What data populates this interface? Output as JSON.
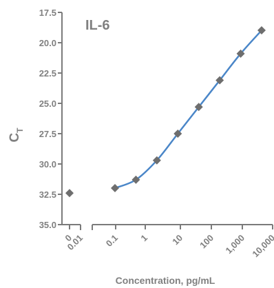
{
  "chart_data": {
    "type": "scatter",
    "title": "IL-6",
    "xlabel": "Concentration, pg/mL",
    "ylabel_main": "C",
    "ylabel_sub": "T",
    "x_scale": "log",
    "x_ticks": [
      {
        "label": "0",
        "value": 0
      },
      {
        "label": "0.01",
        "value": 0.01
      },
      {
        "label": "0.1",
        "value": 0.1
      },
      {
        "label": "1",
        "value": 1
      },
      {
        "label": "10",
        "value": 10
      },
      {
        "label": "100",
        "value": 100
      },
      {
        "label": "1,000",
        "value": 1000
      },
      {
        "label": "10,000",
        "value": 10000
      }
    ],
    "y_ticks": [
      {
        "label": "17.5",
        "value": 17.5
      },
      {
        "label": "20.0",
        "value": 20.0
      },
      {
        "label": "22.5",
        "value": 22.5
      },
      {
        "label": "25.0",
        "value": 25.0
      },
      {
        "label": "27.5",
        "value": 27.5
      },
      {
        "label": "30.0",
        "value": 30.0
      },
      {
        "label": "32.5",
        "value": 32.5
      },
      {
        "label": "35.0",
        "value": 35.0
      }
    ],
    "ylim": [
      35.0,
      17.5
    ],
    "y_inverted": true,
    "zero_point": {
      "x": 0,
      "y": 32.4
    },
    "points": [
      {
        "x": 0.064,
        "y": 31.99
      },
      {
        "x": 0.32,
        "y": 31.3
      },
      {
        "x": 1.6,
        "y": 29.7
      },
      {
        "x": 8,
        "y": 27.5
      },
      {
        "x": 40,
        "y": 25.3
      },
      {
        "x": 200,
        "y": 23.1
      },
      {
        "x": 1000,
        "y": 20.9
      },
      {
        "x": 5000,
        "y": 18.98
      }
    ],
    "fit_curve": true,
    "marker": "diamond",
    "marker_color": "#6e6e6e",
    "curve_color": "#4a86c8",
    "axis_color": "#7a7a7a",
    "text_color": "#808080"
  }
}
